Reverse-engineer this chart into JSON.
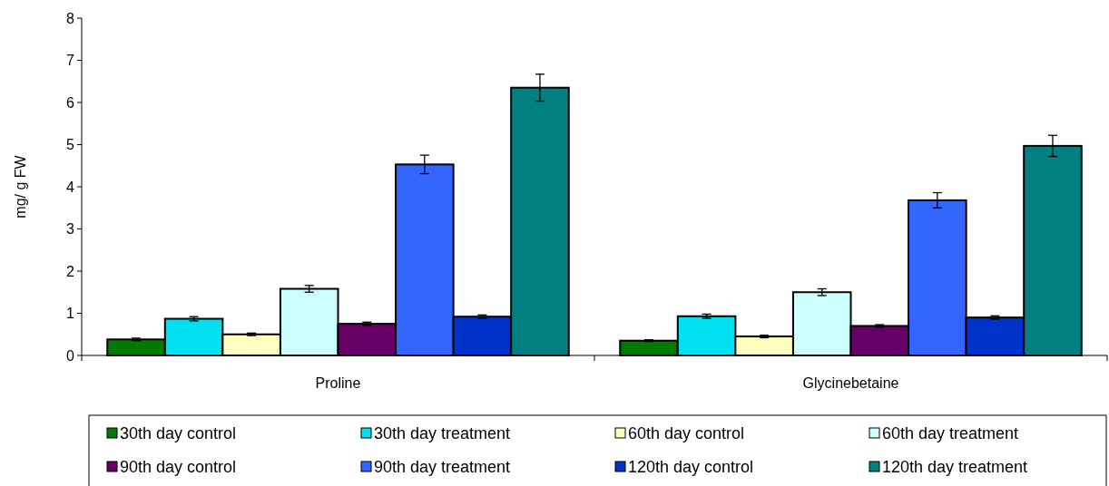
{
  "chart_data": {
    "type": "bar",
    "ylabel": "mg/ g FW",
    "categories": [
      "Proline",
      "Glycinebetaine"
    ],
    "ylim": [
      0,
      8
    ],
    "yticks": [
      0,
      1,
      2,
      3,
      4,
      5,
      6,
      7,
      8
    ],
    "legend": "bottom",
    "grid": false,
    "series": [
      {
        "name": "30th day control",
        "color": "#007a00",
        "values": [
          0.38,
          0.35
        ],
        "errors": [
          0.03,
          0.02
        ]
      },
      {
        "name": "30th day treatment",
        "color": "#00e0f0",
        "values": [
          0.87,
          0.93
        ],
        "errors": [
          0.05,
          0.05
        ]
      },
      {
        "name": "60th day control",
        "color": "#ffffc0",
        "values": [
          0.5,
          0.45
        ],
        "errors": [
          0.03,
          0.03
        ]
      },
      {
        "name": "60th day treatment",
        "color": "#ccffff",
        "values": [
          1.58,
          1.5
        ],
        "errors": [
          0.08,
          0.08
        ]
      },
      {
        "name": "90th day control",
        "color": "#660066",
        "values": [
          0.75,
          0.7
        ],
        "errors": [
          0.04,
          0.03
        ]
      },
      {
        "name": "90th day treatment",
        "color": "#3366ff",
        "values": [
          4.53,
          3.68
        ],
        "errors": [
          0.22,
          0.18
        ]
      },
      {
        "name": "120th day control",
        "color": "#0033cc",
        "values": [
          0.92,
          0.9
        ],
        "errors": [
          0.04,
          0.04
        ]
      },
      {
        "name": "120th day treatment",
        "color": "#008080",
        "values": [
          6.35,
          4.97
        ],
        "errors": [
          0.32,
          0.25
        ]
      }
    ]
  }
}
